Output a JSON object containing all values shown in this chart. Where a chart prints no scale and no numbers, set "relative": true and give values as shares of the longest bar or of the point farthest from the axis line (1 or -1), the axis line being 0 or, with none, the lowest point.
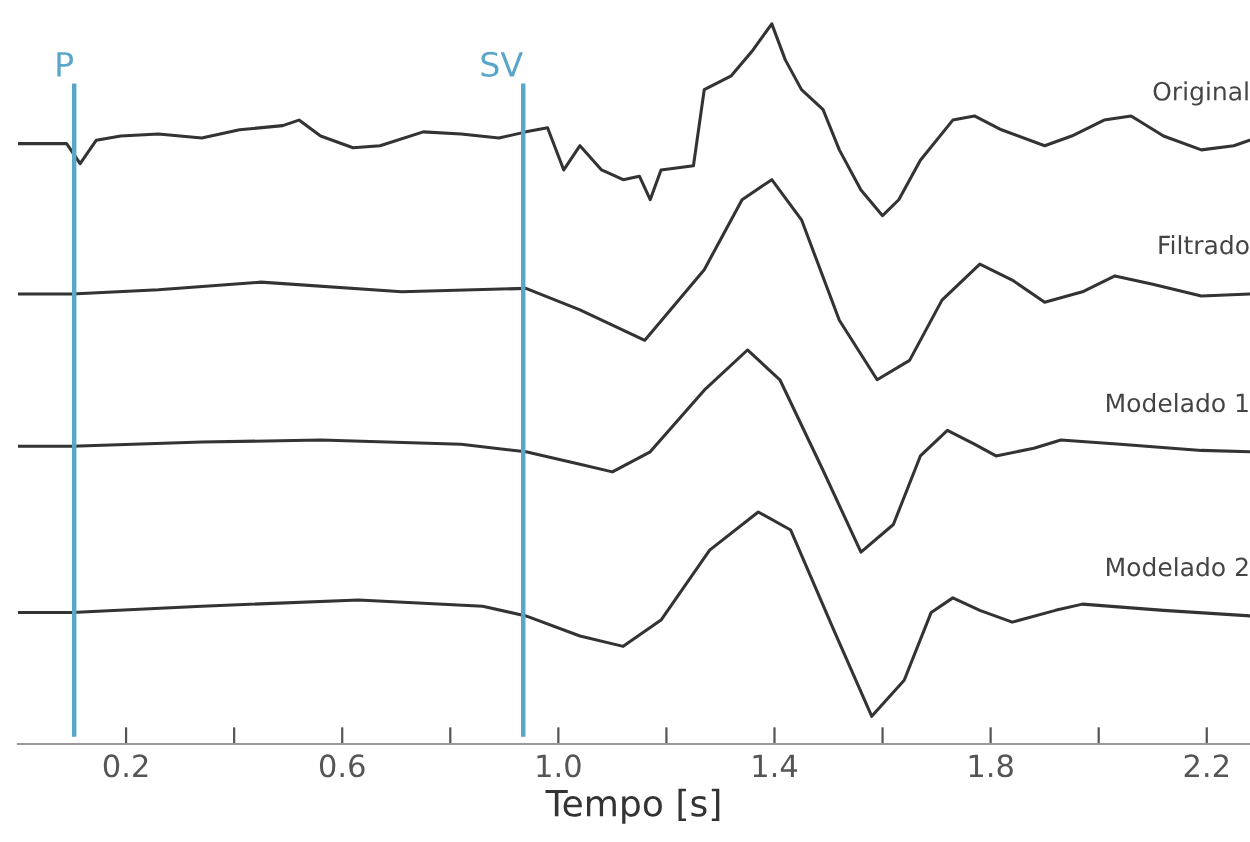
{
  "chart_data": {
    "type": "line",
    "relative": true,
    "xlabel": "Tempo [s]",
    "xlim": [
      0,
      2.28
    ],
    "xticks": [
      0.2,
      {
        "value": 0.4,
        "label": null
      },
      0.6,
      {
        "value": 0.8,
        "label": null
      },
      {
        "value": 1.0,
        "label": "1.0"
      },
      {
        "value": 1.2,
        "label": null
      },
      1.4,
      {
        "value": 1.6,
        "label": null
      },
      1.8,
      {
        "value": 2.0,
        "label": null
      },
      2.2
    ],
    "tick_labels": "x",
    "grid": false,
    "legend": false,
    "marker": "none",
    "line_style": "solid",
    "ref_lines": [
      {
        "axis": "x",
        "value": 0.104,
        "label": "P",
        "color": "#5aa6c8"
      },
      {
        "axis": "x",
        "value": 0.935,
        "label": "SV",
        "color": "#5aa6c8"
      }
    ],
    "series": [
      {
        "name": "Original",
        "color": "#333333",
        "x": [
          0,
          0.09,
          0.115,
          0.145,
          0.19,
          0.26,
          0.34,
          0.41,
          0.49,
          0.52,
          0.56,
          0.62,
          0.67,
          0.75,
          0.82,
          0.89,
          0.94,
          0.98,
          1.01,
          1.04,
          1.08,
          1.12,
          1.15,
          1.17,
          1.19,
          1.25,
          1.27,
          1.32,
          1.36,
          1.395,
          1.42,
          1.45,
          1.49,
          1.52,
          1.56,
          1.6,
          1.63,
          1.67,
          1.73,
          1.77,
          1.82,
          1.9,
          1.95,
          2.01,
          2.06,
          2.12,
          2.19,
          2.25,
          2.28
        ],
        "values": [
          0.827,
          0.827,
          0.798,
          0.832,
          0.838,
          0.841,
          0.835,
          0.847,
          0.853,
          0.861,
          0.838,
          0.821,
          0.824,
          0.844,
          0.841,
          0.835,
          0.844,
          0.85,
          0.789,
          0.824,
          0.789,
          0.775,
          0.78,
          0.746,
          0.789,
          0.795,
          0.905,
          0.925,
          0.962,
          1.0,
          0.948,
          0.905,
          0.876,
          0.818,
          0.76,
          0.723,
          0.746,
          0.803,
          0.861,
          0.867,
          0.847,
          0.824,
          0.838,
          0.861,
          0.867,
          0.838,
          0.818,
          0.824,
          0.832
        ]
      },
      {
        "name": "Filtrado",
        "color": "#333333",
        "x": [
          0,
          0.1,
          0.26,
          0.45,
          0.71,
          0.94,
          1.04,
          1.16,
          1.27,
          1.34,
          1.395,
          1.45,
          1.52,
          1.59,
          1.65,
          1.71,
          1.78,
          1.84,
          1.9,
          1.97,
          2.03,
          2.1,
          2.19,
          2.28
        ],
        "values": [
          0.61,
          0.61,
          0.616,
          0.627,
          0.613,
          0.618,
          0.587,
          0.543,
          0.645,
          0.746,
          0.775,
          0.717,
          0.572,
          0.486,
          0.514,
          0.601,
          0.653,
          0.63,
          0.598,
          0.613,
          0.636,
          0.624,
          0.607,
          0.61
        ]
      },
      {
        "name": "Modelado 1",
        "color": "#333333",
        "x": [
          0,
          0.1,
          0.34,
          0.56,
          0.82,
          0.94,
          1.04,
          1.1,
          1.17,
          1.27,
          1.35,
          1.41,
          1.49,
          1.56,
          1.62,
          1.67,
          1.72,
          1.77,
          1.81,
          1.88,
          1.93,
          2.04,
          2.19,
          2.28
        ],
        "values": [
          0.39,
          0.39,
          0.396,
          0.399,
          0.393,
          0.382,
          0.364,
          0.353,
          0.382,
          0.471,
          0.529,
          0.486,
          0.355,
          0.237,
          0.277,
          0.376,
          0.413,
          0.393,
          0.376,
          0.387,
          0.399,
          0.393,
          0.384,
          0.382
        ]
      },
      {
        "name": "Modelado 2",
        "color": "#333333",
        "x": [
          0,
          0.1,
          0.34,
          0.63,
          0.86,
          0.94,
          1.04,
          1.12,
          1.19,
          1.28,
          1.37,
          1.43,
          1.51,
          1.58,
          1.64,
          1.69,
          1.73,
          1.78,
          1.84,
          1.92,
          1.97,
          2.12,
          2.28
        ],
        "values": [
          0.15,
          0.15,
          0.159,
          0.168,
          0.159,
          0.145,
          0.116,
          0.101,
          0.139,
          0.24,
          0.295,
          0.269,
          0.124,
          0,
          0.052,
          0.15,
          0.171,
          0.153,
          0.136,
          0.153,
          0.162,
          0.153,
          0.145
        ]
      }
    ]
  }
}
